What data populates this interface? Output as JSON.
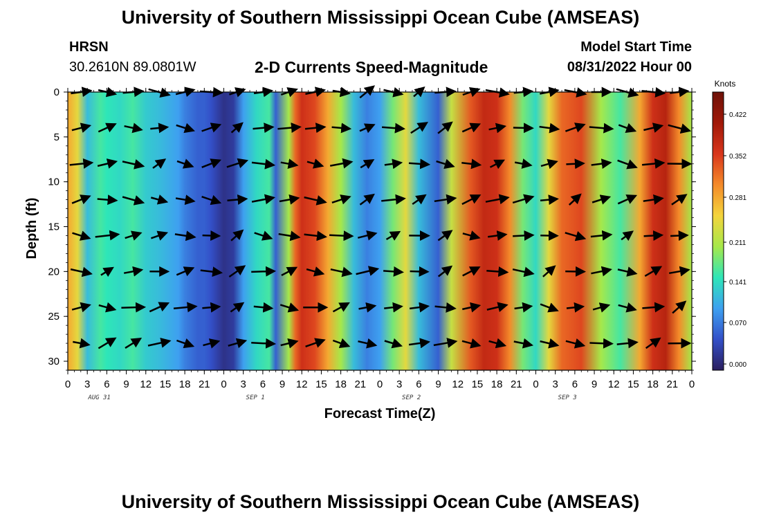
{
  "title": "University of Southern Mississippi Ocean Cube (AMSEAS)",
  "station": {
    "name": "HRSN",
    "coords": "30.2610N  89.0801W"
  },
  "model": {
    "label": "Model Start Time",
    "start": "08/31/2022 Hour 00"
  },
  "footer_title": "University of Southern Mississippi Ocean Cube (AMSEAS)",
  "chart_data": {
    "type": "heatmap",
    "title": "2-D Currents Speed-Magnitude",
    "xlabel": "Forecast Time(Z)",
    "ylabel": "Depth (ft)",
    "x_range_hours": [
      0,
      96
    ],
    "y_range_ft": [
      0,
      31
    ],
    "y_ticks": [
      0,
      5,
      10,
      15,
      20,
      25,
      30
    ],
    "x_tick_labels": [
      "0",
      "3",
      "6",
      "9",
      "12",
      "15",
      "18",
      "21",
      "0",
      "3",
      "6",
      "9",
      "12",
      "15",
      "18",
      "21",
      "0",
      "3",
      "6",
      "9",
      "12",
      "15",
      "18",
      "21",
      "0",
      "3",
      "6",
      "9",
      "12",
      "15",
      "18",
      "21",
      "0"
    ],
    "date_labels": [
      {
        "label": "AUG 31",
        "hour": 4
      },
      {
        "label": "SEP 1",
        "hour": 28
      },
      {
        "label": "SEP 2",
        "hour": 52
      },
      {
        "label": "SEP 3",
        "hour": 76
      }
    ],
    "colorbar": {
      "units": "Knots",
      "ticks": [
        "0.422",
        "0.352",
        "0.281",
        "0.211",
        "0.141",
        "0.070",
        "0.000"
      ],
      "range": [
        0,
        0.45
      ],
      "colors": [
        "#2a1e5e",
        "#3350c8",
        "#3ea0f0",
        "#2ee6b8",
        "#a6e84a",
        "#f4d43c",
        "#f48a2a",
        "#d8361c",
        "#a01808",
        "#6e1208"
      ]
    },
    "speed_profile_hours": [
      0,
      1.5,
      3,
      5,
      6,
      8,
      10,
      12,
      14,
      17,
      18,
      20,
      21,
      22,
      24,
      25.5,
      27,
      29,
      31,
      32,
      34,
      35,
      36,
      38,
      40,
      42,
      44,
      46,
      48,
      50,
      52,
      54,
      57,
      59,
      62,
      64,
      66,
      68,
      70,
      72,
      74,
      76,
      79,
      82,
      85,
      88,
      90,
      92,
      94,
      96
    ],
    "speed_profile_knots": [
      0.28,
      0.24,
      0.12,
      0.16,
      0.15,
      0.14,
      0.16,
      0.13,
      0.12,
      0.1,
      0.08,
      0.06,
      0.06,
      0.05,
      0.02,
      0.03,
      0.1,
      0.14,
      0.16,
      0.06,
      0.2,
      0.32,
      0.36,
      0.34,
      0.28,
      0.2,
      0.12,
      0.08,
      0.1,
      0.18,
      0.24,
      0.12,
      0.06,
      0.22,
      0.33,
      0.37,
      0.36,
      0.3,
      0.18,
      0.14,
      0.24,
      0.32,
      0.34,
      0.2,
      0.16,
      0.28,
      0.36,
      0.38,
      0.3,
      0.2
    ],
    "vector_depths_ft": [
      0,
      4,
      8,
      12,
      16,
      20,
      24,
      28
    ]
  }
}
